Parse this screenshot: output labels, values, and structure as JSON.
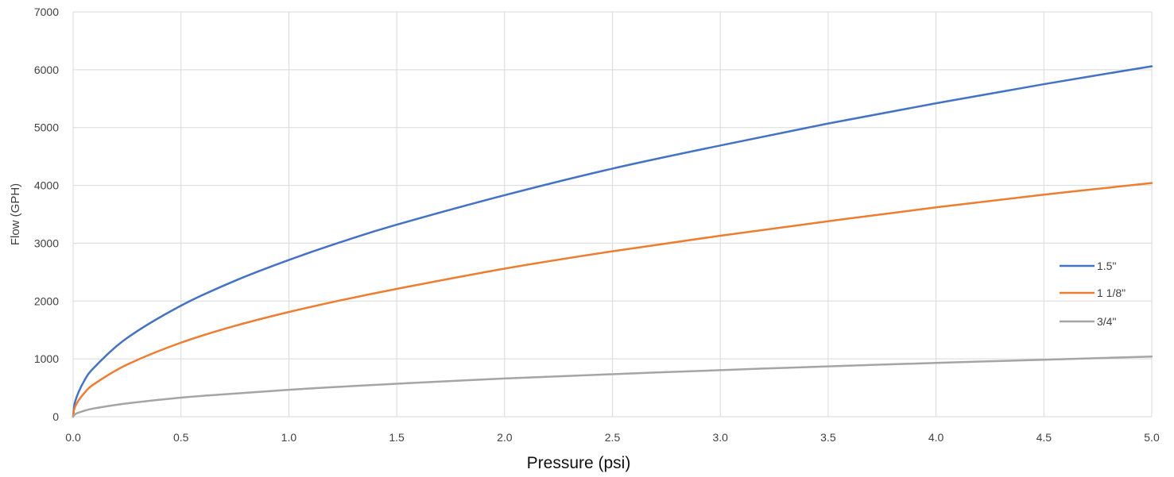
{
  "chart_data": {
    "type": "line",
    "xlabel": "Pressure (psi)",
    "ylabel": "Flow (GPH)",
    "xlim": [
      0,
      5
    ],
    "ylim": [
      0,
      7000
    ],
    "xticks": [
      "0.0",
      "0.5",
      "1.0",
      "1.5",
      "2.0",
      "2.5",
      "3.0",
      "3.5",
      "4.0",
      "4.5",
      "5.0"
    ],
    "yticks": [
      "0",
      "1000",
      "2000",
      "3000",
      "4000",
      "5000",
      "6000",
      "7000"
    ],
    "grid": true,
    "legend_position": "right",
    "x": [
      0,
      0.01,
      0.05,
      0.1,
      0.25,
      0.5,
      0.75,
      1.0,
      1.25,
      1.5,
      2.0,
      2.5,
      3.0,
      3.5,
      4.0,
      4.5,
      5.0
    ],
    "series": [
      {
        "name": "1.5\"",
        "color": "#4472c4",
        "values": [
          0,
          270,
          610,
          860,
          1360,
          1920,
          2350,
          2710,
          3030,
          3320,
          3830,
          4290,
          4690,
          5070,
          5420,
          5750,
          6060
        ]
      },
      {
        "name": "1 1/8\"",
        "color": "#ed7d31",
        "values": [
          0,
          180,
          400,
          570,
          900,
          1280,
          1570,
          1810,
          2020,
          2210,
          2560,
          2860,
          3130,
          3380,
          3620,
          3840,
          4040
        ]
      },
      {
        "name": "3/4\"",
        "color": "#a5a5a5",
        "values": [
          0,
          45,
          100,
          145,
          230,
          330,
          400,
          465,
          520,
          570,
          660,
          735,
          805,
          870,
          930,
          985,
          1040
        ]
      }
    ]
  }
}
